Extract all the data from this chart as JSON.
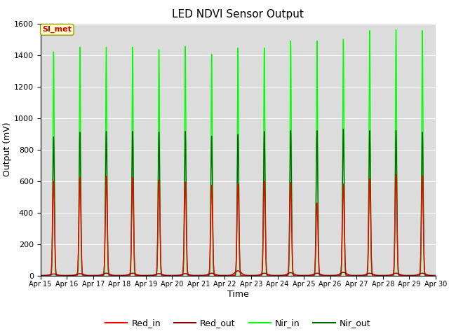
{
  "title": "LED NDVI Sensor Output",
  "xlabel": "Time",
  "ylabel": "Output (mV)",
  "ylim": [
    0,
    1600
  ],
  "xlim": [
    0,
    15
  ],
  "facecolor": "#dcdcdc",
  "legend_label": "SI_met",
  "series": {
    "Red_in": {
      "color": "#ff0000",
      "lw": 1.0
    },
    "Red_out": {
      "color": "#8b0000",
      "lw": 1.0
    },
    "Nir_in": {
      "color": "#00ff00",
      "lw": 1.0
    },
    "Nir_out": {
      "color": "#006400",
      "lw": 1.0
    }
  },
  "tick_labels": [
    "Apr 15",
    "Apr 16",
    "Apr 17",
    "Apr 18",
    "Apr 19",
    "Apr 20",
    "Apr 21",
    "Apr 22",
    "Apr 23",
    "Apr 24",
    "Apr 25",
    "Apr 26",
    "Apr 27",
    "Apr 28",
    "Apr 29",
    "Apr 30"
  ],
  "red_in_peaks": [
    600,
    625,
    630,
    625,
    605,
    595,
    575,
    580,
    600,
    590,
    460,
    580,
    615,
    640,
    635
  ],
  "red_out_peaks": [
    10,
    12,
    15,
    15,
    12,
    12,
    15,
    30,
    15,
    18,
    15,
    20,
    15,
    15,
    15
  ],
  "nir_in_peaks": [
    1420,
    1450,
    1450,
    1450,
    1435,
    1455,
    1405,
    1445,
    1445,
    1490,
    1490,
    1500,
    1555,
    1560,
    1555
  ],
  "nir_out_peaks": [
    880,
    910,
    915,
    915,
    910,
    915,
    885,
    895,
    915,
    920,
    920,
    930,
    920,
    920,
    910
  ]
}
